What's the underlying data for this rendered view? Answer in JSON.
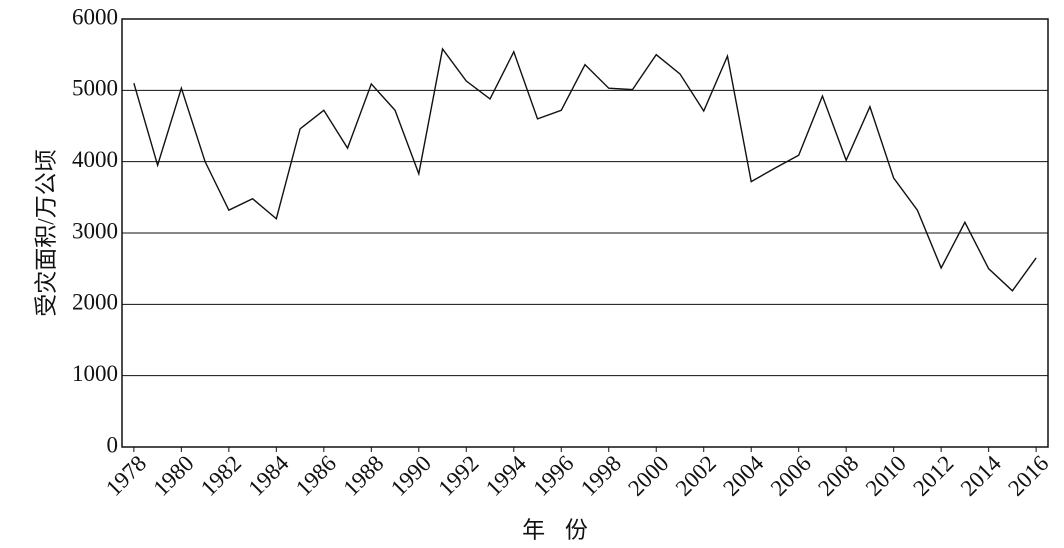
{
  "chart_data": {
    "type": "line",
    "x": [
      1978,
      1979,
      1980,
      1981,
      1982,
      1983,
      1984,
      1985,
      1986,
      1987,
      1988,
      1989,
      1990,
      1991,
      1992,
      1993,
      1994,
      1995,
      1996,
      1997,
      1998,
      1999,
      2000,
      2001,
      2002,
      2003,
      2004,
      2005,
      2006,
      2007,
      2008,
      2009,
      2010,
      2011,
      2012,
      2013,
      2014,
      2015,
      2016
    ],
    "values": [
      5100,
      3950,
      5030,
      4000,
      3320,
      3480,
      3200,
      4460,
      4720,
      4190,
      5090,
      4720,
      3830,
      5580,
      5130,
      4880,
      5540,
      4600,
      4720,
      5360,
      5030,
      5010,
      5500,
      5230,
      4710,
      5480,
      3720,
      3910,
      4090,
      4920,
      4020,
      4770,
      3770,
      3320,
      2510,
      3150,
      2500,
      2190,
      2650
    ],
    "color": "#111111",
    "xlim": [
      1977.5,
      2016.5
    ],
    "xticks": [
      1978,
      1980,
      1982,
      1984,
      1986,
      1988,
      1990,
      1992,
      1994,
      1996,
      1998,
      2000,
      2002,
      2004,
      2006,
      2008,
      2010,
      2012,
      2014,
      2016
    ],
    "ylim": [
      0,
      6000
    ],
    "yticks": [
      0,
      1000,
      2000,
      3000,
      4000,
      5000,
      6000
    ],
    "grid": true,
    "y_label": "受灾面积/万公顷",
    "x_label": "年 份"
  }
}
